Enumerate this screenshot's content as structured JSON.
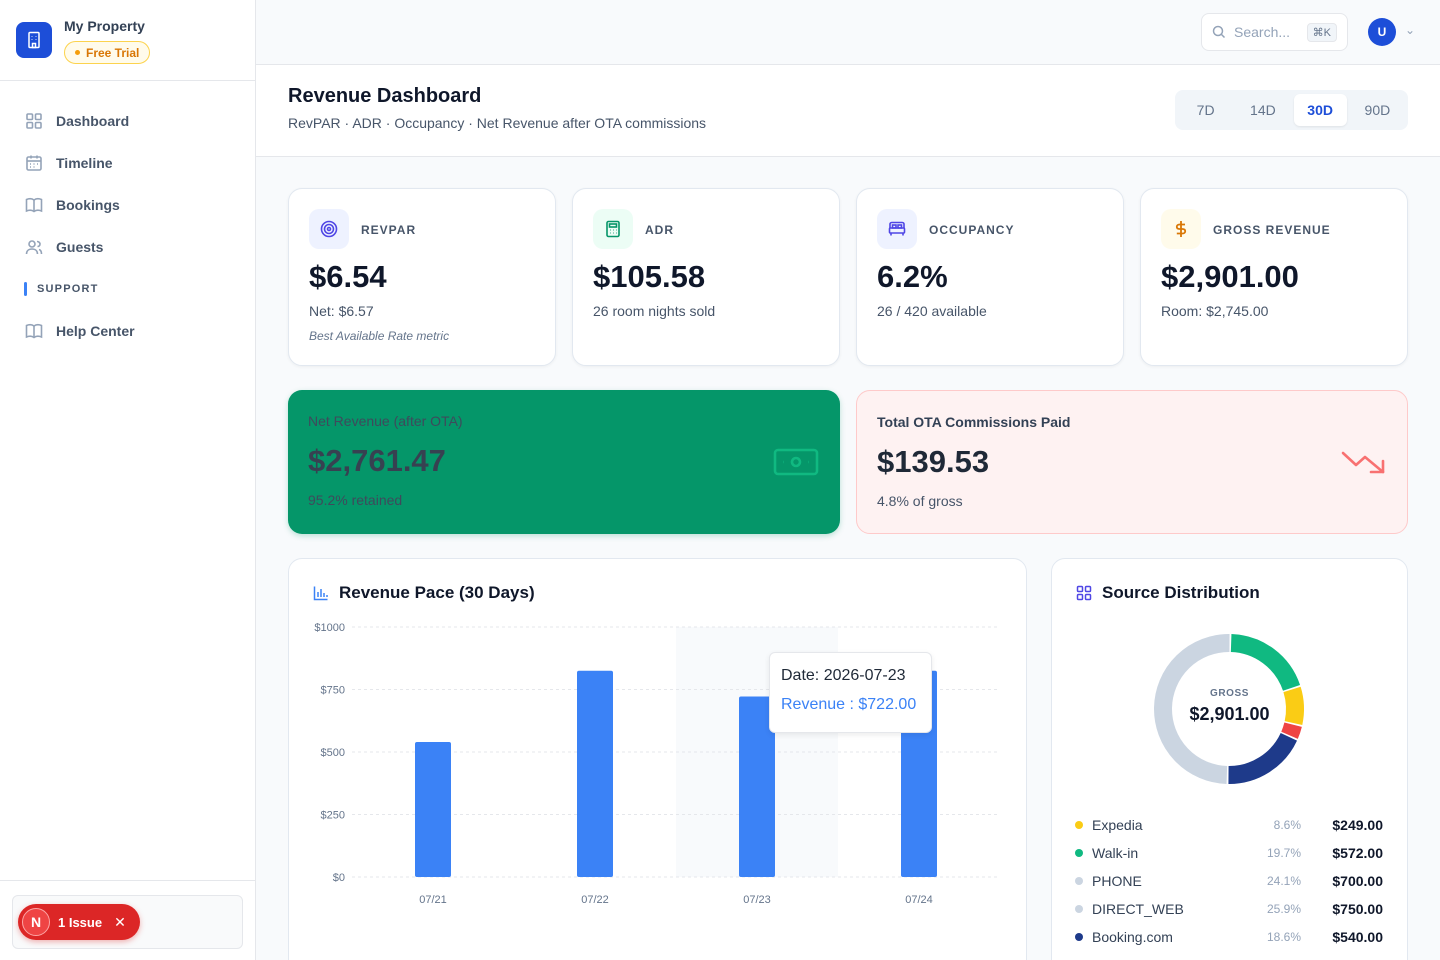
{
  "brand": {
    "name": "My Property",
    "badge": "Free Trial"
  },
  "nav": {
    "items": [
      {
        "label": "Dashboard",
        "icon": "grid-icon"
      },
      {
        "label": "Timeline",
        "icon": "calendar-icon"
      },
      {
        "label": "Bookings",
        "icon": "book-icon"
      },
      {
        "label": "Guests",
        "icon": "users-icon"
      }
    ],
    "section": "SUPPORT",
    "support_items": [
      {
        "label": "Help Center",
        "icon": "book-icon"
      }
    ]
  },
  "issue": {
    "n": "N",
    "label": "1 Issue"
  },
  "header": {
    "search_placeholder": "Search...",
    "shortcut": "⌘K",
    "avatar": "U"
  },
  "page": {
    "title": "Revenue Dashboard",
    "subtitle": "RevPAR · ADR · Occupancy · Net Revenue after OTA commissions",
    "ranges": [
      "7D",
      "14D",
      "30D",
      "90D"
    ],
    "active_range": "30D"
  },
  "kpis": [
    {
      "label": "REVPAR",
      "value": "$6.54",
      "sub": "Net: $6.57",
      "note": "Best Available Rate metric",
      "icon": "target-icon",
      "accent": "#4f46e5"
    },
    {
      "label": "ADR",
      "value": "$105.58",
      "sub": "26 room nights sold",
      "note": "",
      "icon": "calculator-icon",
      "accent": "#059669"
    },
    {
      "label": "OCCUPANCY",
      "value": "6.2%",
      "sub": "26 / 420 available",
      "note": "",
      "icon": "bed-icon",
      "accent": "#4f46e5"
    },
    {
      "label": "GROSS REVENUE",
      "value": "$2,901.00",
      "sub": "Room: $2,745.00",
      "note": "",
      "icon": "dollar-icon",
      "accent": "#d97706"
    }
  ],
  "net_revenue": {
    "label": "Net Revenue (after OTA)",
    "value": "$2,761.47",
    "sub": "95.2% retained",
    "icon": "banknote-icon"
  },
  "ota": {
    "label": "Total OTA Commissions Paid",
    "value": "$139.53",
    "sub": "4.8% of gross",
    "icon": "trending-down-icon"
  },
  "revenue_pace": {
    "title": "Revenue Pace (30 Days)",
    "icon": "bar-chart-icon"
  },
  "tooltip": {
    "date": "Date: 2026-07-23",
    "revenue": "Revenue : $722.00"
  },
  "chart_data": {
    "type": "bar",
    "title": "Revenue Pace (30 Days)",
    "categories": [
      "07/21",
      "07/22",
      "07/23",
      "07/24"
    ],
    "values": [
      540,
      825,
      722,
      825
    ],
    "ylim": [
      0,
      1000
    ],
    "yticks": [
      "$0",
      "$250",
      "$500",
      "$750",
      "$1000"
    ],
    "ytick_values": [
      0,
      250,
      500,
      750,
      1000
    ],
    "grid": true,
    "color": "#3b82f6",
    "highlight": "07/23"
  },
  "source": {
    "title": "Source Distribution",
    "icon": "grid-icon",
    "center_label": "GROSS",
    "center_value": "$2,901.00",
    "items": [
      {
        "name": "Expedia",
        "pct": "8.6%",
        "amount": "$249.00",
        "color": "#facc15"
      },
      {
        "name": "Walk-in",
        "pct": "19.7%",
        "amount": "$572.00",
        "color": "#10b981"
      },
      {
        "name": "PHONE",
        "pct": "24.1%",
        "amount": "$700.00",
        "color": "#cbd5e1"
      },
      {
        "name": "DIRECT_WEB",
        "pct": "25.9%",
        "amount": "$750.00",
        "color": "#cbd5e1"
      },
      {
        "name": "Booking.com",
        "pct": "18.6%",
        "amount": "$540.00",
        "color": "#1e3a8a"
      }
    ],
    "donut": [
      {
        "value": 19.7,
        "color": "#10b981"
      },
      {
        "value": 8.6,
        "color": "#facc15"
      },
      {
        "value": 3.1,
        "color": "#ef4444"
      },
      {
        "value": 18.6,
        "color": "#1e3a8a"
      },
      {
        "value": 50.0,
        "color": "#cbd5e1"
      }
    ]
  }
}
